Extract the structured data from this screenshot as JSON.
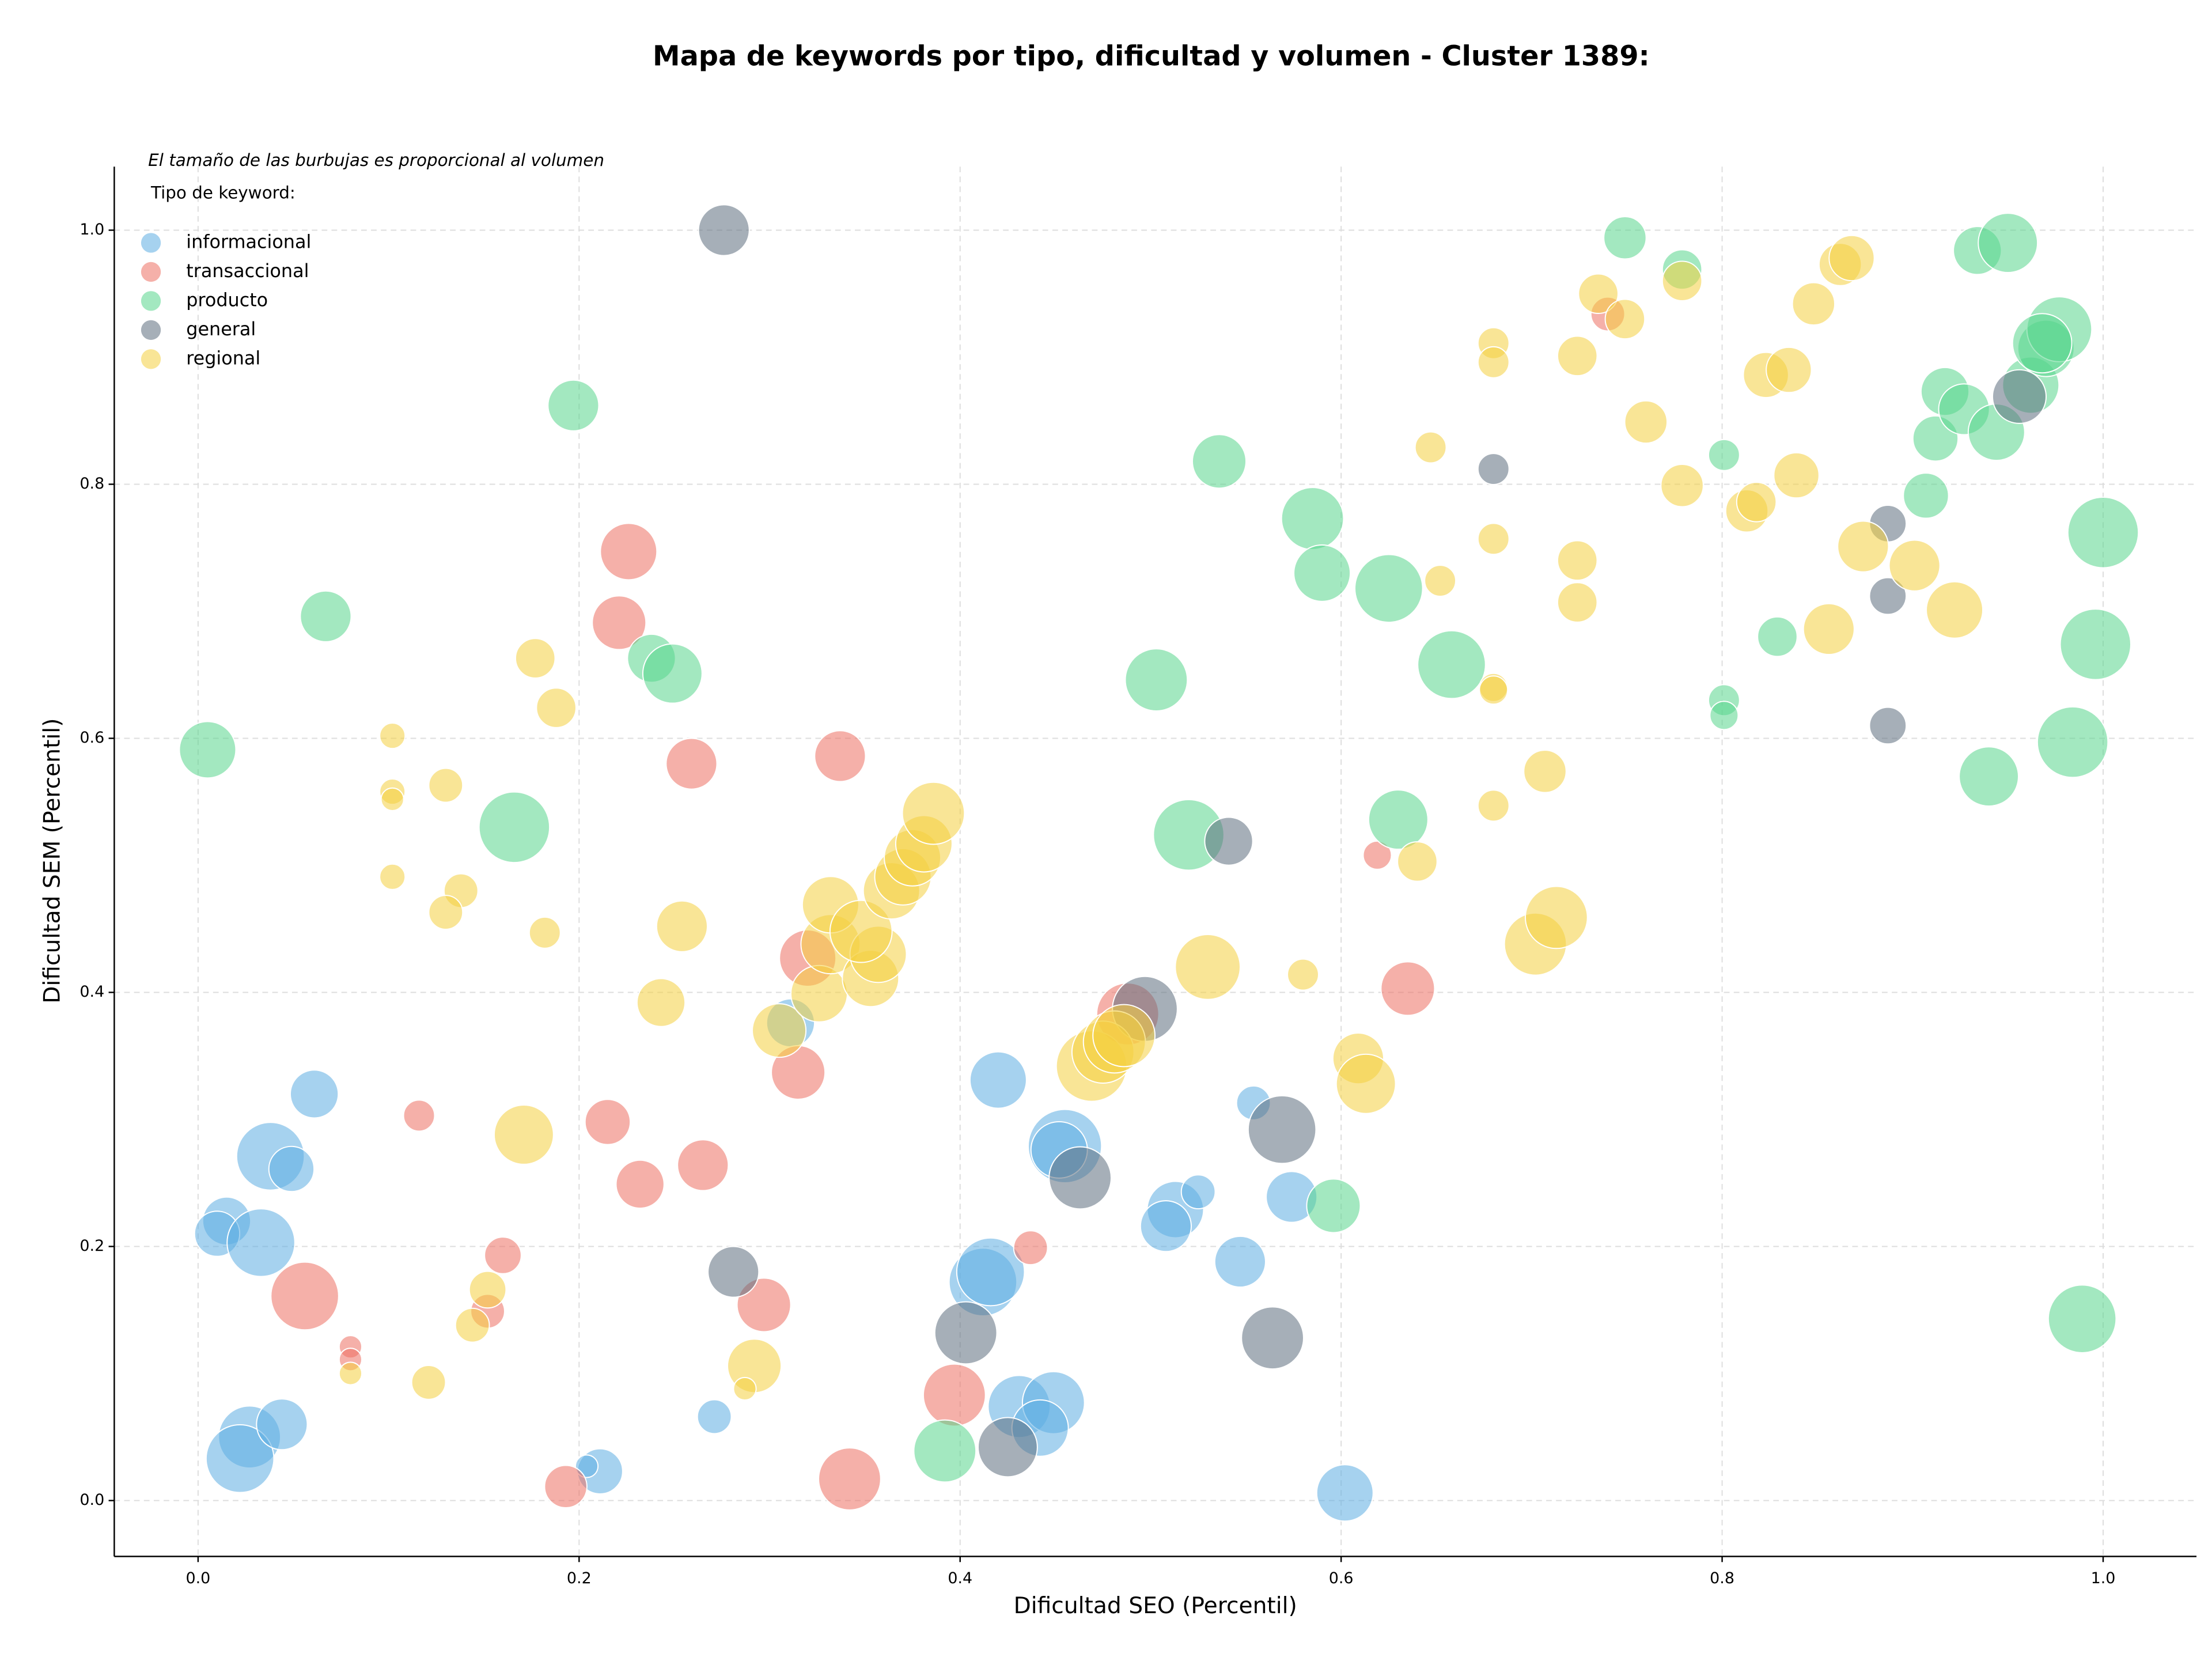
{
  "chart_data": {
    "type": "scatter",
    "title": "Mapa de keywords por tipo, dificultad y volumen - Cluster 1389:",
    "annotation": "El tamaño de las burbujas es proporcional al volumen",
    "legend_title": "Tipo de keyword:",
    "legend": "upper left",
    "xlabel": "Dificultad SEO (Percentil)",
    "ylabel": "Dificultad SEM (Percentil)",
    "xlim": [
      -0.044,
      1.049
    ],
    "ylim": [
      -0.044,
      1.05
    ],
    "xticks": [
      {
        "value": 0,
        "label": "0.0"
      },
      0.2,
      0.4,
      0.6,
      0.8,
      {
        "value": 1,
        "label": "1.0"
      }
    ],
    "yticks": [
      {
        "value": 0,
        "label": "0.0"
      },
      0.2,
      0.4,
      0.6,
      0.8,
      {
        "value": 1,
        "label": "1.0"
      }
    ],
    "grid": true,
    "series": [
      {
        "name": "informacional",
        "color": "#5dade2",
        "x": [
          0.061,
          0.038,
          0.049,
          0.015,
          0.01,
          0.033,
          0.027,
          0.022,
          0.044,
          0.211,
          0.204,
          0.271,
          0.311,
          0.42,
          0.455,
          0.452,
          0.412,
          0.416,
          0.431,
          0.449,
          0.442,
          0.513,
          0.508,
          0.525,
          0.554,
          0.547,
          0.574,
          0.602
        ],
        "y": [
          0.32,
          0.271,
          0.261,
          0.22,
          0.21,
          0.203,
          0.05,
          0.033,
          0.06,
          0.023,
          0.027,
          0.066,
          0.376,
          0.331,
          0.279,
          0.276,
          0.172,
          0.18,
          0.074,
          0.077,
          0.057,
          0.229,
          0.216,
          0.243,
          0.313,
          0.188,
          0.239,
          0.006
        ],
        "sizes": [
          17,
          24,
          16,
          17,
          16,
          24,
          22,
          24,
          18,
          16,
          8,
          12,
          17,
          20,
          26,
          20,
          24,
          24,
          22,
          22,
          20,
          20,
          18,
          12,
          12,
          18,
          18,
          20
        ]
      },
      {
        "name": "transaccional",
        "color": "#ec7063",
        "x": [
          0.226,
          0.221,
          0.259,
          0.337,
          0.32,
          0.315,
          0.116,
          0.215,
          0.232,
          0.265,
          0.16,
          0.056,
          0.152,
          0.08,
          0.08,
          0.297,
          0.193,
          0.342,
          0.397,
          0.437,
          0.488,
          0.619,
          0.635,
          0.74
        ],
        "y": [
          0.747,
          0.691,
          0.58,
          0.586,
          0.427,
          0.337,
          0.303,
          0.298,
          0.249,
          0.264,
          0.193,
          0.161,
          0.149,
          0.121,
          0.111,
          0.154,
          0.011,
          0.017,
          0.083,
          0.199,
          0.383,
          0.508,
          0.403,
          0.934
        ],
        "sizes": [
          20,
          19,
          18,
          18,
          20,
          19,
          11,
          16,
          17,
          18,
          13,
          24,
          12,
          8,
          8,
          19,
          15,
          22,
          22,
          12,
          22,
          10,
          19,
          12
        ]
      },
      {
        "name": "producto",
        "color": "#58d68d",
        "x": [
          0.005,
          0.067,
          0.197,
          0.166,
          0.238,
          0.249,
          0.392,
          0.503,
          0.536,
          0.52,
          0.585,
          0.59,
          0.625,
          0.658,
          0.63,
          0.596,
          0.749,
          0.779,
          0.801,
          0.801,
          0.801,
          0.829,
          0.907,
          0.912,
          0.917,
          0.927,
          0.934,
          0.95,
          0.944,
          0.94,
          0.962,
          0.97,
          0.977,
          0.968,
          0.984,
          1.0,
          0.996,
          0.989
        ],
        "y": [
          0.591,
          0.696,
          0.862,
          0.53,
          0.663,
          0.651,
          0.039,
          0.646,
          0.818,
          0.524,
          0.773,
          0.73,
          0.718,
          0.658,
          0.536,
          0.232,
          0.994,
          0.969,
          0.823,
          0.63,
          0.618,
          0.68,
          0.791,
          0.836,
          0.873,
          0.859,
          0.984,
          0.99,
          0.841,
          0.57,
          0.878,
          0.907,
          0.922,
          0.911,
          0.597,
          0.762,
          0.674,
          0.143
        ],
        "sizes": [
          20,
          18,
          18,
          25,
          17,
          21,
          22,
          22,
          19,
          25,
          22,
          20,
          24,
          24,
          21,
          19,
          15,
          14,
          11,
          11,
          10,
          14,
          16,
          16,
          17,
          18,
          17,
          21,
          20,
          21,
          20,
          20,
          23,
          21,
          25,
          25,
          25,
          24
        ]
      },
      {
        "name": "general",
        "color": "#5d6d7e",
        "x": [
          0.276,
          0.281,
          0.403,
          0.425,
          0.463,
          0.497,
          0.541,
          0.569,
          0.564,
          0.68,
          0.887,
          0.887,
          0.887,
          0.956
        ],
        "y": [
          1.0,
          0.18,
          0.132,
          0.042,
          0.254,
          0.387,
          0.519,
          0.292,
          0.128,
          0.812,
          0.769,
          0.712,
          0.61,
          0.869
        ],
        "sizes": [
          18,
          18,
          22,
          21,
          22,
          23,
          17,
          24,
          22,
          11,
          13,
          13,
          13,
          19
        ]
      },
      {
        "name": "regional",
        "color": "#f4d03f",
        "x": [
          0.102,
          0.102,
          0.102,
          0.102,
          0.13,
          0.138,
          0.13,
          0.177,
          0.188,
          0.182,
          0.171,
          0.152,
          0.144,
          0.08,
          0.121,
          0.254,
          0.243,
          0.292,
          0.287,
          0.305,
          0.326,
          0.332,
          0.332,
          0.353,
          0.357,
          0.348,
          0.364,
          0.37,
          0.375,
          0.381,
          0.386,
          0.469,
          0.475,
          0.481,
          0.486,
          0.53,
          0.58,
          0.609,
          0.613,
          0.64,
          0.647,
          0.652,
          0.68,
          0.68,
          0.68,
          0.68,
          0.68,
          0.68,
          0.707,
          0.702,
          0.713,
          0.724,
          0.724,
          0.724,
          0.735,
          0.749,
          0.76,
          0.779,
          0.779,
          0.813,
          0.818,
          0.823,
          0.835,
          0.839,
          0.848,
          0.856,
          0.862,
          0.868,
          0.874,
          0.901,
          0.922
        ],
        "y": [
          0.602,
          0.558,
          0.552,
          0.491,
          0.563,
          0.48,
          0.463,
          0.663,
          0.624,
          0.447,
          0.288,
          0.166,
          0.138,
          0.1,
          0.093,
          0.452,
          0.392,
          0.106,
          0.088,
          0.37,
          0.399,
          0.438,
          0.469,
          0.411,
          0.43,
          0.448,
          0.48,
          0.491,
          0.506,
          0.517,
          0.541,
          0.342,
          0.353,
          0.361,
          0.366,
          0.42,
          0.414,
          0.348,
          0.328,
          0.503,
          0.829,
          0.724,
          0.911,
          0.896,
          0.757,
          0.64,
          0.638,
          0.547,
          0.574,
          0.438,
          0.459,
          0.901,
          0.74,
          0.707,
          0.95,
          0.93,
          0.849,
          0.96,
          0.799,
          0.779,
          0.786,
          0.886,
          0.89,
          0.807,
          0.942,
          0.686,
          0.973,
          0.978,
          0.751,
          0.736,
          0.701
        ],
        "sizes": [
          9,
          9,
          8,
          9,
          12,
          12,
          12,
          14,
          14,
          11,
          21,
          13,
          12,
          8,
          12,
          18,
          17,
          19,
          8,
          19,
          20,
          21,
          20,
          20,
          20,
          22,
          20,
          20,
          20,
          20,
          22,
          25,
          22,
          22,
          22,
          23,
          11,
          18,
          21,
          14,
          11,
          11,
          11,
          11,
          11,
          10,
          10,
          11,
          15,
          22,
          22,
          14,
          14,
          14,
          14,
          14,
          15,
          14,
          15,
          15,
          14,
          16,
          16,
          16,
          15,
          18,
          15,
          16,
          18,
          18,
          20
        ]
      }
    ]
  }
}
